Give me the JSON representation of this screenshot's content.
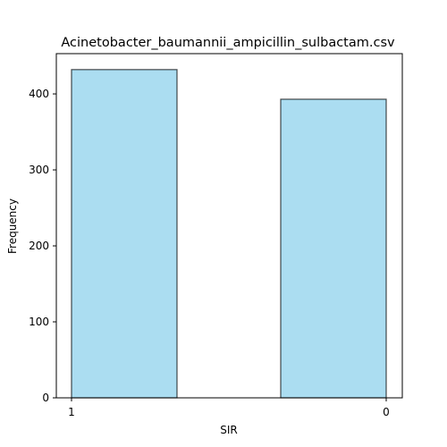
{
  "chart_data": {
    "type": "bar",
    "title": "Acinetobacter_baumannii_ampicillin_sulbactam.csv",
    "xlabel": "SIR",
    "ylabel": "Frequency",
    "x_tick_labels": [
      "1",
      "0"
    ],
    "categories": [
      "1",
      "0"
    ],
    "values": [
      432,
      393
    ],
    "y_ticks": [
      0,
      100,
      200,
      300,
      400
    ],
    "ylim": [
      0,
      453
    ],
    "grid": false,
    "bar_color": "#87ceeb",
    "edge_color": "#000000"
  }
}
